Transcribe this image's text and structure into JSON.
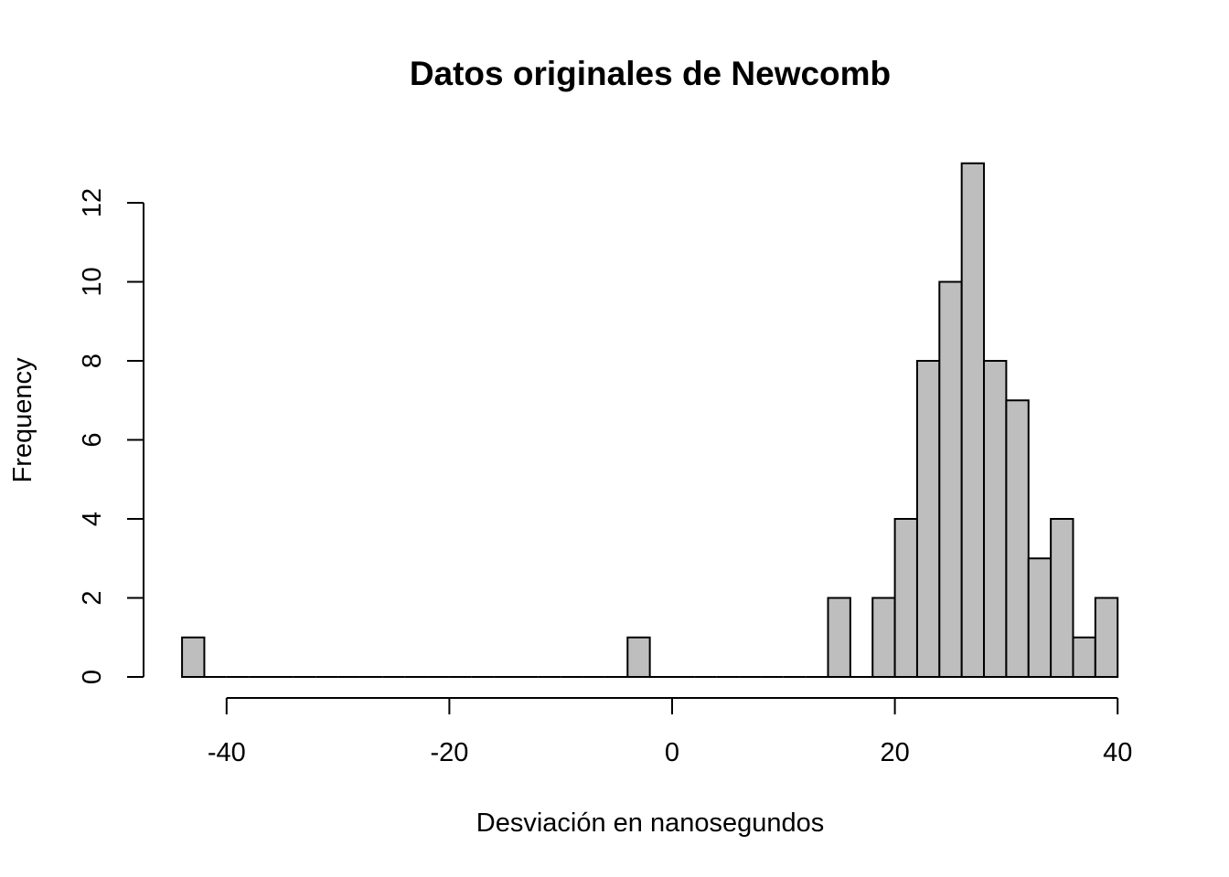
{
  "chart_data": {
    "type": "bar",
    "title": "Datos originales de Newcomb",
    "xlabel": "Desviación en nanosegundos",
    "ylabel": "Frequency",
    "bar_color": "#bebebe",
    "border_color": "#000000",
    "xlim": [
      -44,
      40
    ],
    "ylim": [
      0,
      13
    ],
    "x_ticks": [
      -40,
      -20,
      0,
      20,
      40
    ],
    "y_ticks": [
      0,
      2,
      4,
      6,
      8,
      10,
      12
    ],
    "bins": [
      {
        "x0": -44,
        "x1": -42,
        "count": 1
      },
      {
        "x0": -42,
        "x1": -40,
        "count": 0
      },
      {
        "x0": -40,
        "x1": -38,
        "count": 0
      },
      {
        "x0": -38,
        "x1": -36,
        "count": 0
      },
      {
        "x0": -36,
        "x1": -34,
        "count": 0
      },
      {
        "x0": -34,
        "x1": -32,
        "count": 0
      },
      {
        "x0": -32,
        "x1": -30,
        "count": 0
      },
      {
        "x0": -30,
        "x1": -28,
        "count": 0
      },
      {
        "x0": -28,
        "x1": -26,
        "count": 0
      },
      {
        "x0": -26,
        "x1": -24,
        "count": 0
      },
      {
        "x0": -24,
        "x1": -22,
        "count": 0
      },
      {
        "x0": -22,
        "x1": -20,
        "count": 0
      },
      {
        "x0": -20,
        "x1": -18,
        "count": 0
      },
      {
        "x0": -18,
        "x1": -16,
        "count": 0
      },
      {
        "x0": -16,
        "x1": -14,
        "count": 0
      },
      {
        "x0": -14,
        "x1": -12,
        "count": 0
      },
      {
        "x0": -12,
        "x1": -10,
        "count": 0
      },
      {
        "x0": -10,
        "x1": -8,
        "count": 0
      },
      {
        "x0": -8,
        "x1": -6,
        "count": 0
      },
      {
        "x0": -6,
        "x1": -4,
        "count": 0
      },
      {
        "x0": -4,
        "x1": -2,
        "count": 1
      },
      {
        "x0": -2,
        "x1": 0,
        "count": 0
      },
      {
        "x0": 0,
        "x1": 2,
        "count": 0
      },
      {
        "x0": 2,
        "x1": 4,
        "count": 0
      },
      {
        "x0": 4,
        "x1": 6,
        "count": 0
      },
      {
        "x0": 6,
        "x1": 8,
        "count": 0
      },
      {
        "x0": 8,
        "x1": 10,
        "count": 0
      },
      {
        "x0": 10,
        "x1": 12,
        "count": 0
      },
      {
        "x0": 12,
        "x1": 14,
        "count": 0
      },
      {
        "x0": 14,
        "x1": 16,
        "count": 2
      },
      {
        "x0": 16,
        "x1": 18,
        "count": 0
      },
      {
        "x0": 18,
        "x1": 20,
        "count": 2
      },
      {
        "x0": 20,
        "x1": 22,
        "count": 4
      },
      {
        "x0": 22,
        "x1": 24,
        "count": 8
      },
      {
        "x0": 24,
        "x1": 26,
        "count": 10
      },
      {
        "x0": 26,
        "x1": 28,
        "count": 13
      },
      {
        "x0": 28,
        "x1": 30,
        "count": 8
      },
      {
        "x0": 30,
        "x1": 32,
        "count": 7
      },
      {
        "x0": 32,
        "x1": 34,
        "count": 3
      },
      {
        "x0": 34,
        "x1": 36,
        "count": 4
      },
      {
        "x0": 36,
        "x1": 38,
        "count": 1
      },
      {
        "x0": 38,
        "x1": 40,
        "count": 2
      }
    ]
  }
}
